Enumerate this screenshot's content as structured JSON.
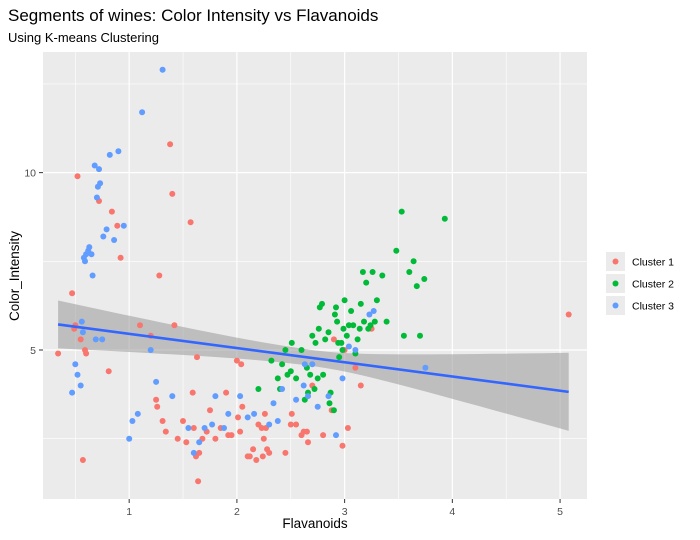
{
  "chart_data": {
    "type": "scatter",
    "title": "Segments of wines: Color Intensity vs Flavanoids",
    "subtitle": "Using K-means Clustering",
    "xlabel": "Flavanoids",
    "ylabel": "Color_Intensity",
    "xlim": [
      0.2,
      5.25
    ],
    "ylim": [
      0.8,
      13.4
    ],
    "x_ticks": [
      1,
      2,
      3,
      4,
      5
    ],
    "y_ticks": [
      5,
      10
    ],
    "grid": true,
    "legend_position": "right",
    "series": [
      {
        "name": "Cluster 1",
        "color": "#F8766D",
        "points": [
          [
            0.34,
            4.9
          ],
          [
            0.47,
            6.6
          ],
          [
            0.49,
            5.6
          ],
          [
            0.5,
            5.7
          ],
          [
            0.52,
            9.9
          ],
          [
            0.55,
            5.3
          ],
          [
            0.57,
            1.9
          ],
          [
            0.59,
            5.0
          ],
          [
            0.6,
            4.9
          ],
          [
            0.72,
            9.2
          ],
          [
            0.81,
            4.4
          ],
          [
            0.84,
            8.9
          ],
          [
            0.89,
            8.5
          ],
          [
            0.92,
            7.6
          ],
          [
            1.1,
            5.7
          ],
          [
            1.2,
            5.4
          ],
          [
            1.25,
            3.6
          ],
          [
            1.26,
            3.4
          ],
          [
            1.28,
            7.1
          ],
          [
            1.31,
            3.0
          ],
          [
            1.34,
            2.7
          ],
          [
            1.38,
            10.8
          ],
          [
            1.4,
            9.4
          ],
          [
            1.42,
            5.7
          ],
          [
            1.45,
            2.5
          ],
          [
            1.5,
            3.0
          ],
          [
            1.53,
            2.4
          ],
          [
            1.57,
            8.6
          ],
          [
            1.59,
            3.8
          ],
          [
            1.6,
            2.8
          ],
          [
            1.62,
            2.0
          ],
          [
            1.63,
            4.8
          ],
          [
            1.64,
            1.3
          ],
          [
            1.65,
            2.1
          ],
          [
            1.68,
            2.5
          ],
          [
            1.72,
            2.7
          ],
          [
            1.75,
            3.3
          ],
          [
            1.8,
            2.5
          ],
          [
            1.85,
            2.8
          ],
          [
            1.9,
            3.8
          ],
          [
            1.92,
            2.6
          ],
          [
            1.95,
            2.6
          ],
          [
            2.0,
            4.7
          ],
          [
            2.01,
            3.1
          ],
          [
            2.03,
            2.7
          ],
          [
            2.04,
            4.6
          ],
          [
            2.05,
            3.4
          ],
          [
            2.1,
            2.0
          ],
          [
            2.12,
            2.0
          ],
          [
            2.15,
            2.2
          ],
          [
            2.18,
            1.9
          ],
          [
            2.2,
            2.9
          ],
          [
            2.23,
            2.8
          ],
          [
            2.24,
            2.0
          ],
          [
            2.25,
            2.5
          ],
          [
            2.26,
            3.2
          ],
          [
            2.27,
            2.8
          ],
          [
            2.28,
            2.2
          ],
          [
            2.3,
            2.1
          ],
          [
            2.45,
            2.1
          ],
          [
            2.5,
            2.9
          ],
          [
            2.51,
            3.2
          ],
          [
            2.55,
            2.9
          ],
          [
            2.6,
            2.6
          ],
          [
            2.62,
            2.7
          ],
          [
            2.65,
            2.7
          ],
          [
            2.66,
            2.4
          ],
          [
            2.7,
            4.0
          ],
          [
            2.8,
            2.6
          ],
          [
            2.88,
            3.3
          ],
          [
            2.9,
            5.3
          ],
          [
            2.98,
            2.3
          ],
          [
            3.0,
            5.0
          ],
          [
            3.03,
            2.8
          ],
          [
            3.1,
            4.5
          ],
          [
            3.15,
            4.0
          ],
          [
            3.25,
            5.6
          ],
          [
            5.08,
            6.0
          ]
        ]
      },
      {
        "name": "Cluster 2",
        "color": "#00BA38",
        "points": [
          [
            2.2,
            3.9
          ],
          [
            2.32,
            4.7
          ],
          [
            2.38,
            4.2
          ],
          [
            2.4,
            3.9
          ],
          [
            2.42,
            4.6
          ],
          [
            2.45,
            5.0
          ],
          [
            2.47,
            4.3
          ],
          [
            2.5,
            4.4
          ],
          [
            2.51,
            5.2
          ],
          [
            2.55,
            4.2
          ],
          [
            2.6,
            5.0
          ],
          [
            2.63,
            3.6
          ],
          [
            2.65,
            4.5
          ],
          [
            2.66,
            3.8
          ],
          [
            2.68,
            4.3
          ],
          [
            2.7,
            5.4
          ],
          [
            2.72,
            3.9
          ],
          [
            2.73,
            5.2
          ],
          [
            2.75,
            4.2
          ],
          [
            2.76,
            5.6
          ],
          [
            2.77,
            6.2
          ],
          [
            2.79,
            6.3
          ],
          [
            2.8,
            4.3
          ],
          [
            2.82,
            5.3
          ],
          [
            2.85,
            5.5
          ],
          [
            2.86,
            3.5
          ],
          [
            2.87,
            3.8
          ],
          [
            2.9,
            3.3
          ],
          [
            2.91,
            6.0
          ],
          [
            2.92,
            6.2
          ],
          [
            2.93,
            5.8
          ],
          [
            2.94,
            5.2
          ],
          [
            2.95,
            4.8
          ],
          [
            2.97,
            5.2
          ],
          [
            2.98,
            5.0
          ],
          [
            2.99,
            5.6
          ],
          [
            3.0,
            6.4
          ],
          [
            3.02,
            5.4
          ],
          [
            3.04,
            5.7
          ],
          [
            3.06,
            6.1
          ],
          [
            3.08,
            5.7
          ],
          [
            3.1,
            4.9
          ],
          [
            3.12,
            5.3
          ],
          [
            3.14,
            5.6
          ],
          [
            3.15,
            6.3
          ],
          [
            3.17,
            7.2
          ],
          [
            3.18,
            5.8
          ],
          [
            3.2,
            6.9
          ],
          [
            3.22,
            5.6
          ],
          [
            3.24,
            5.7
          ],
          [
            3.26,
            7.2
          ],
          [
            3.28,
            5.8
          ],
          [
            3.3,
            6.4
          ],
          [
            3.35,
            7.1
          ],
          [
            3.39,
            5.8
          ],
          [
            3.48,
            7.8
          ],
          [
            3.53,
            8.9
          ],
          [
            3.55,
            5.4
          ],
          [
            3.6,
            7.2
          ],
          [
            3.64,
            7.5
          ],
          [
            3.67,
            6.8
          ],
          [
            3.7,
            5.4
          ],
          [
            3.74,
            7.0
          ],
          [
            3.93,
            8.7
          ]
        ]
      },
      {
        "name": "Cluster 3",
        "color": "#619CFF",
        "points": [
          [
            0.47,
            3.8
          ],
          [
            0.5,
            4.6
          ],
          [
            0.52,
            4.3
          ],
          [
            0.55,
            4.0
          ],
          [
            0.56,
            5.8
          ],
          [
            0.57,
            5.5
          ],
          [
            0.58,
            7.6
          ],
          [
            0.59,
            7.5
          ],
          [
            0.6,
            7.7
          ],
          [
            0.62,
            7.8
          ],
          [
            0.63,
            7.9
          ],
          [
            0.65,
            7.7
          ],
          [
            0.66,
            7.1
          ],
          [
            0.68,
            10.2
          ],
          [
            0.69,
            5.3
          ],
          [
            0.7,
            9.3
          ],
          [
            0.71,
            9.6
          ],
          [
            0.72,
            10.1
          ],
          [
            0.73,
            9.7
          ],
          [
            0.75,
            5.3
          ],
          [
            0.76,
            8.2
          ],
          [
            0.79,
            8.4
          ],
          [
            0.82,
            10.5
          ],
          [
            0.86,
            8.1
          ],
          [
            0.9,
            10.6
          ],
          [
            0.95,
            8.5
          ],
          [
            1.0,
            2.5
          ],
          [
            1.03,
            3.0
          ],
          [
            1.08,
            3.2
          ],
          [
            1.12,
            11.7
          ],
          [
            1.2,
            5.0
          ],
          [
            1.25,
            4.1
          ],
          [
            1.31,
            12.9
          ],
          [
            1.4,
            3.7
          ],
          [
            1.55,
            2.8
          ],
          [
            1.6,
            2.1
          ],
          [
            1.65,
            2.4
          ],
          [
            1.7,
            2.8
          ],
          [
            1.77,
            2.9
          ],
          [
            1.8,
            3.7
          ],
          [
            1.88,
            2.8
          ],
          [
            1.92,
            3.2
          ],
          [
            2.03,
            3.7
          ],
          [
            2.1,
            3.1
          ],
          [
            2.16,
            3.2
          ],
          [
            2.3,
            2.9
          ],
          [
            2.34,
            3.5
          ],
          [
            2.38,
            3.0
          ],
          [
            2.42,
            3.9
          ],
          [
            2.55,
            3.6
          ],
          [
            2.62,
            4.0
          ],
          [
            2.63,
            4.6
          ],
          [
            2.66,
            3.7
          ],
          [
            2.7,
            4.6
          ],
          [
            2.75,
            3.4
          ],
          [
            2.85,
            3.7
          ],
          [
            2.92,
            2.6
          ],
          [
            2.98,
            4.2
          ],
          [
            3.04,
            5.1
          ],
          [
            3.1,
            5.0
          ],
          [
            3.23,
            6.0
          ],
          [
            3.27,
            6.1
          ],
          [
            3.75,
            4.5
          ]
        ]
      }
    ],
    "regression_line": {
      "color": "#3366FF",
      "x": [
        0.34,
        5.08
      ],
      "y": [
        5.72,
        3.82
      ],
      "band_lower": [
        5.05,
        2.75
      ],
      "band_upper": [
        6.4,
        4.95
      ],
      "band_mid_width": 0.45
    }
  }
}
